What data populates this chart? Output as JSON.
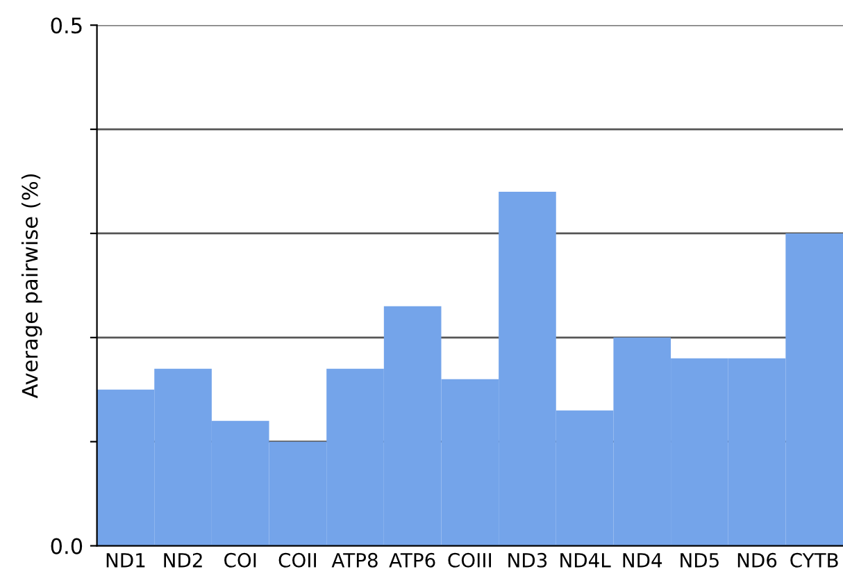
{
  "chart_data": {
    "type": "bar",
    "ylabel": "Average pairwise (%)",
    "categories": [
      "ND1",
      "ND2",
      "COI",
      "COII",
      "ATP8",
      "ATP6",
      "COIII",
      "ND3",
      "ND4L",
      "ND4",
      "ND5",
      "ND6",
      "CYTB"
    ],
    "values": [
      0.15,
      0.17,
      0.12,
      0.1,
      0.17,
      0.23,
      0.16,
      0.34,
      0.13,
      0.2,
      0.18,
      0.18,
      0.3
    ],
    "color": "#74a4ea",
    "ylim": [
      0,
      0.5
    ],
    "yticks": [
      {
        "value": 0,
        "label": "0.0"
      },
      {
        "value": 0.1,
        "label": null
      },
      {
        "value": 0.2,
        "label": null
      },
      {
        "value": 0.3,
        "label": null
      },
      {
        "value": 0.4,
        "label": null
      },
      {
        "value": 0.5,
        "label": "0.5"
      }
    ],
    "grid": "y"
  }
}
